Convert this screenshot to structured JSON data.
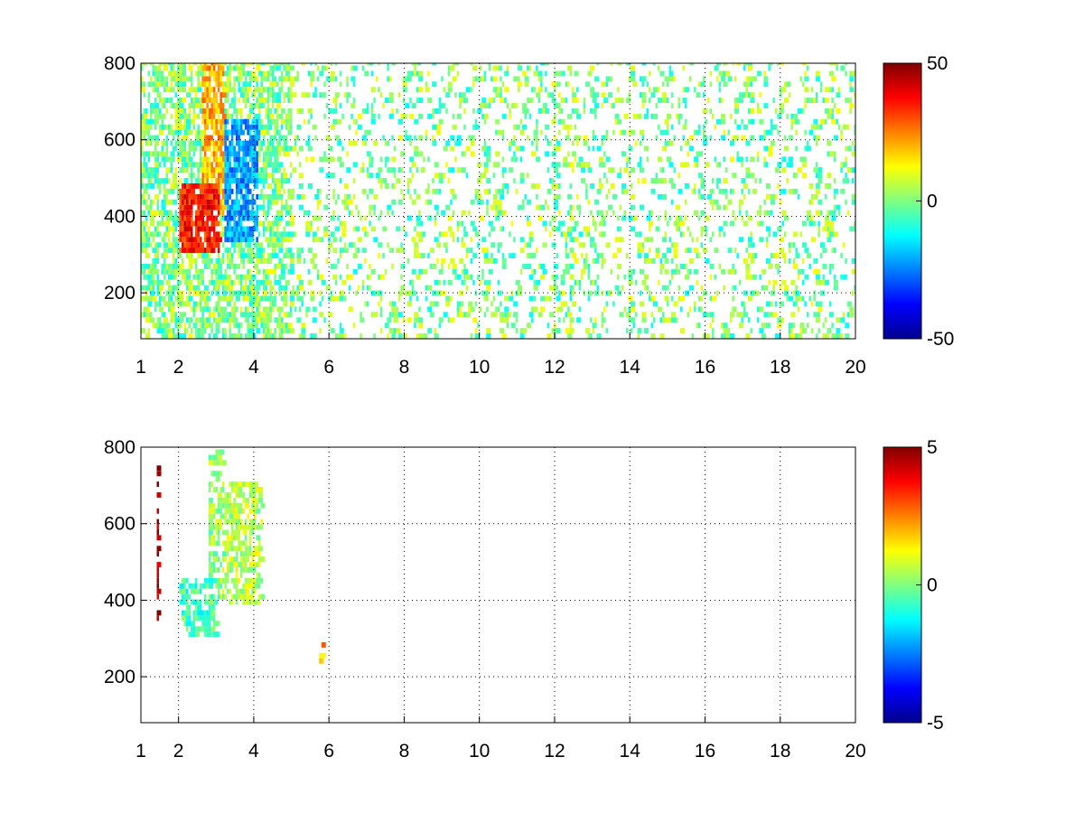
{
  "chart_data": [
    {
      "type": "heatmap",
      "title": "",
      "xlabel": "",
      "ylabel": "",
      "xlim": [
        1,
        20
      ],
      "ylim": [
        80,
        800
      ],
      "xticks": [
        1,
        2,
        4,
        6,
        8,
        10,
        12,
        14,
        16,
        18,
        20
      ],
      "xtick_labels": [
        "1",
        "2",
        "4",
        "6",
        "8",
        "10",
        "12",
        "14",
        "16",
        "18",
        "20"
      ],
      "yticks": [
        200,
        400,
        600,
        800
      ],
      "ytick_labels": [
        "200",
        "400",
        "600",
        "800"
      ],
      "grid": true,
      "colormap": "jet",
      "colorbar": {
        "range": [
          -50,
          50
        ],
        "ticks": [
          50,
          0,
          -50
        ],
        "tick_labels": [
          "50",
          "0",
          "-50"
        ]
      },
      "features": [
        {
          "x_range": [
            2.0,
            3.1
          ],
          "y_range": [
            300,
            480
          ],
          "value": 35
        },
        {
          "x_range": [
            2.6,
            3.2
          ],
          "y_range": [
            400,
            800
          ],
          "value": 20
        },
        {
          "x_range": [
            3.2,
            4.1
          ],
          "y_range": [
            330,
            650
          ],
          "value": -22
        },
        {
          "x_range": [
            1.0,
            20.0
          ],
          "y_range": [
            80,
            800
          ],
          "value": 0
        }
      ]
    },
    {
      "type": "heatmap",
      "title": "",
      "xlabel": "",
      "ylabel": "",
      "xlim": [
        1,
        20
      ],
      "ylim": [
        80,
        800
      ],
      "xticks": [
        1,
        2,
        4,
        6,
        8,
        10,
        12,
        14,
        16,
        18,
        20
      ],
      "xtick_labels": [
        "1",
        "2",
        "4",
        "6",
        "8",
        "10",
        "12",
        "14",
        "16",
        "18",
        "20"
      ],
      "yticks": [
        200,
        400,
        600,
        800
      ],
      "ytick_labels": [
        "200",
        "400",
        "600",
        "800"
      ],
      "grid": true,
      "colormap": "jet",
      "colorbar": {
        "range": [
          -5,
          5
        ],
        "ticks": [
          5,
          0,
          -5
        ],
        "tick_labels": [
          "5",
          "0",
          "-5"
        ]
      },
      "features": [
        {
          "x_range": [
            2.0,
            3.0
          ],
          "y_range": [
            300,
            450
          ],
          "value": -0.6
        },
        {
          "x_range": [
            2.8,
            3.2
          ],
          "y_range": [
            400,
            780
          ],
          "value": 0.2
        },
        {
          "x_range": [
            3.2,
            4.2
          ],
          "y_range": [
            380,
            700
          ],
          "value": 0.6
        },
        {
          "x_range": [
            1.4,
            1.45
          ],
          "y_range": [
            330,
            760
          ],
          "value": 4.5
        },
        {
          "x_range": [
            5.7,
            5.8
          ],
          "y_range": [
            210,
            280
          ],
          "value": 2
        }
      ]
    }
  ]
}
